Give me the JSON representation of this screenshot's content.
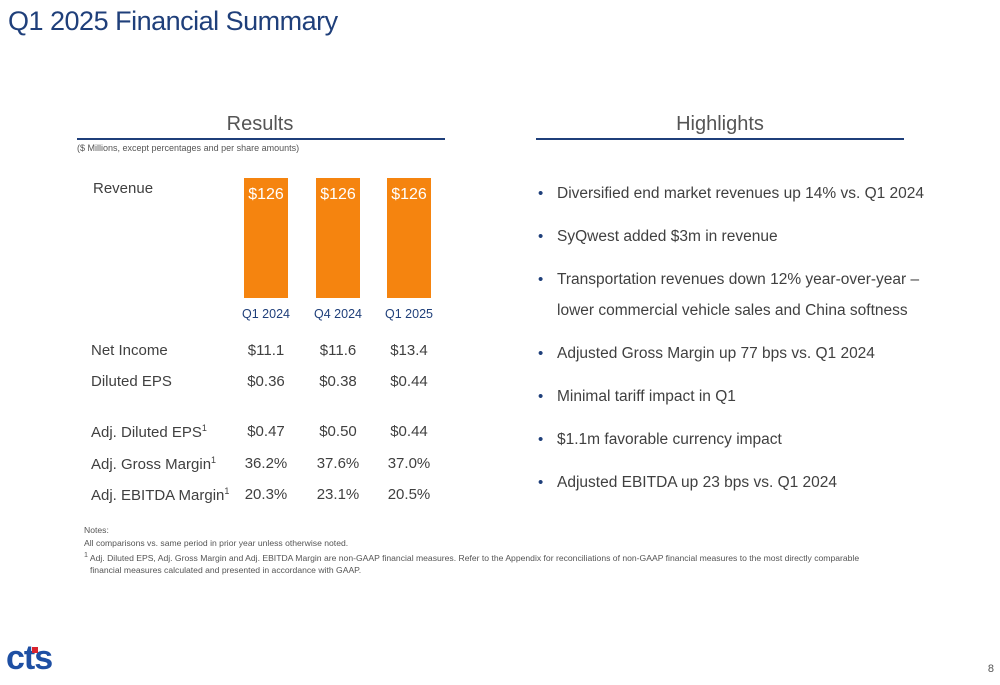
{
  "title": "Q1 2025 Financial Summary",
  "results": {
    "heading": "Results",
    "units_note": "($ Millions, except percentages and per share amounts)",
    "revenue": {
      "label": "Revenue",
      "periods": [
        "Q1 2024",
        "Q4 2024",
        "Q1 2025"
      ],
      "bar_labels": [
        "$126",
        "$126",
        "$126"
      ]
    },
    "rows": [
      {
        "label": "Net Income",
        "sup": "",
        "values": [
          "$11.1",
          "$11.6",
          "$13.4"
        ]
      },
      {
        "label": "Diluted EPS",
        "sup": "",
        "values": [
          "$0.36",
          "$0.38",
          "$0.44"
        ]
      },
      {
        "label": "Adj. Diluted EPS",
        "sup": "1",
        "values": [
          "$0.47",
          "$0.50",
          "$0.44"
        ]
      },
      {
        "label": "Adj. Gross Margin",
        "sup": "1",
        "values": [
          "36.2%",
          "37.6%",
          "37.0%"
        ]
      },
      {
        "label": "Adj. EBITDA Margin",
        "sup": "1",
        "values": [
          "20.3%",
          "23.1%",
          "20.5%"
        ]
      }
    ]
  },
  "highlights": {
    "heading": "Highlights",
    "items": [
      "Diversified end market revenues up 14% vs. Q1 2024",
      "SyQwest added $3m in revenue",
      "Transportation revenues down 12% year-over-year – lower commercial vehicle sales and China softness",
      "Adjusted Gross Margin up 77 bps vs. Q1 2024",
      "Minimal tariff impact in Q1",
      "$1.1m favorable currency impact",
      "Adjusted EBITDA up 23 bps vs. Q1 2024"
    ]
  },
  "notes": {
    "heading": "Notes:",
    "line1": "All comparisons vs. same period in prior year unless otherwise noted.",
    "footnote_mark": "1",
    "footnote_text": "Adj. Diluted EPS, Adj. Gross Margin and Adj. EBITDA Margin are non-GAAP financial measures. Refer to the Appendix for reconciliations of non-GAAP financial measures to the most directly comparable",
    "footnote_text_2": "financial measures calculated and presented in accordance with GAAP."
  },
  "logo": {
    "text": "cts"
  },
  "page_number": "8",
  "colors": {
    "brand_blue": "#1f3f7a",
    "bar_orange": "#f5840f",
    "logo_blue": "#1e4fa3",
    "logo_red": "#d9232e"
  }
}
